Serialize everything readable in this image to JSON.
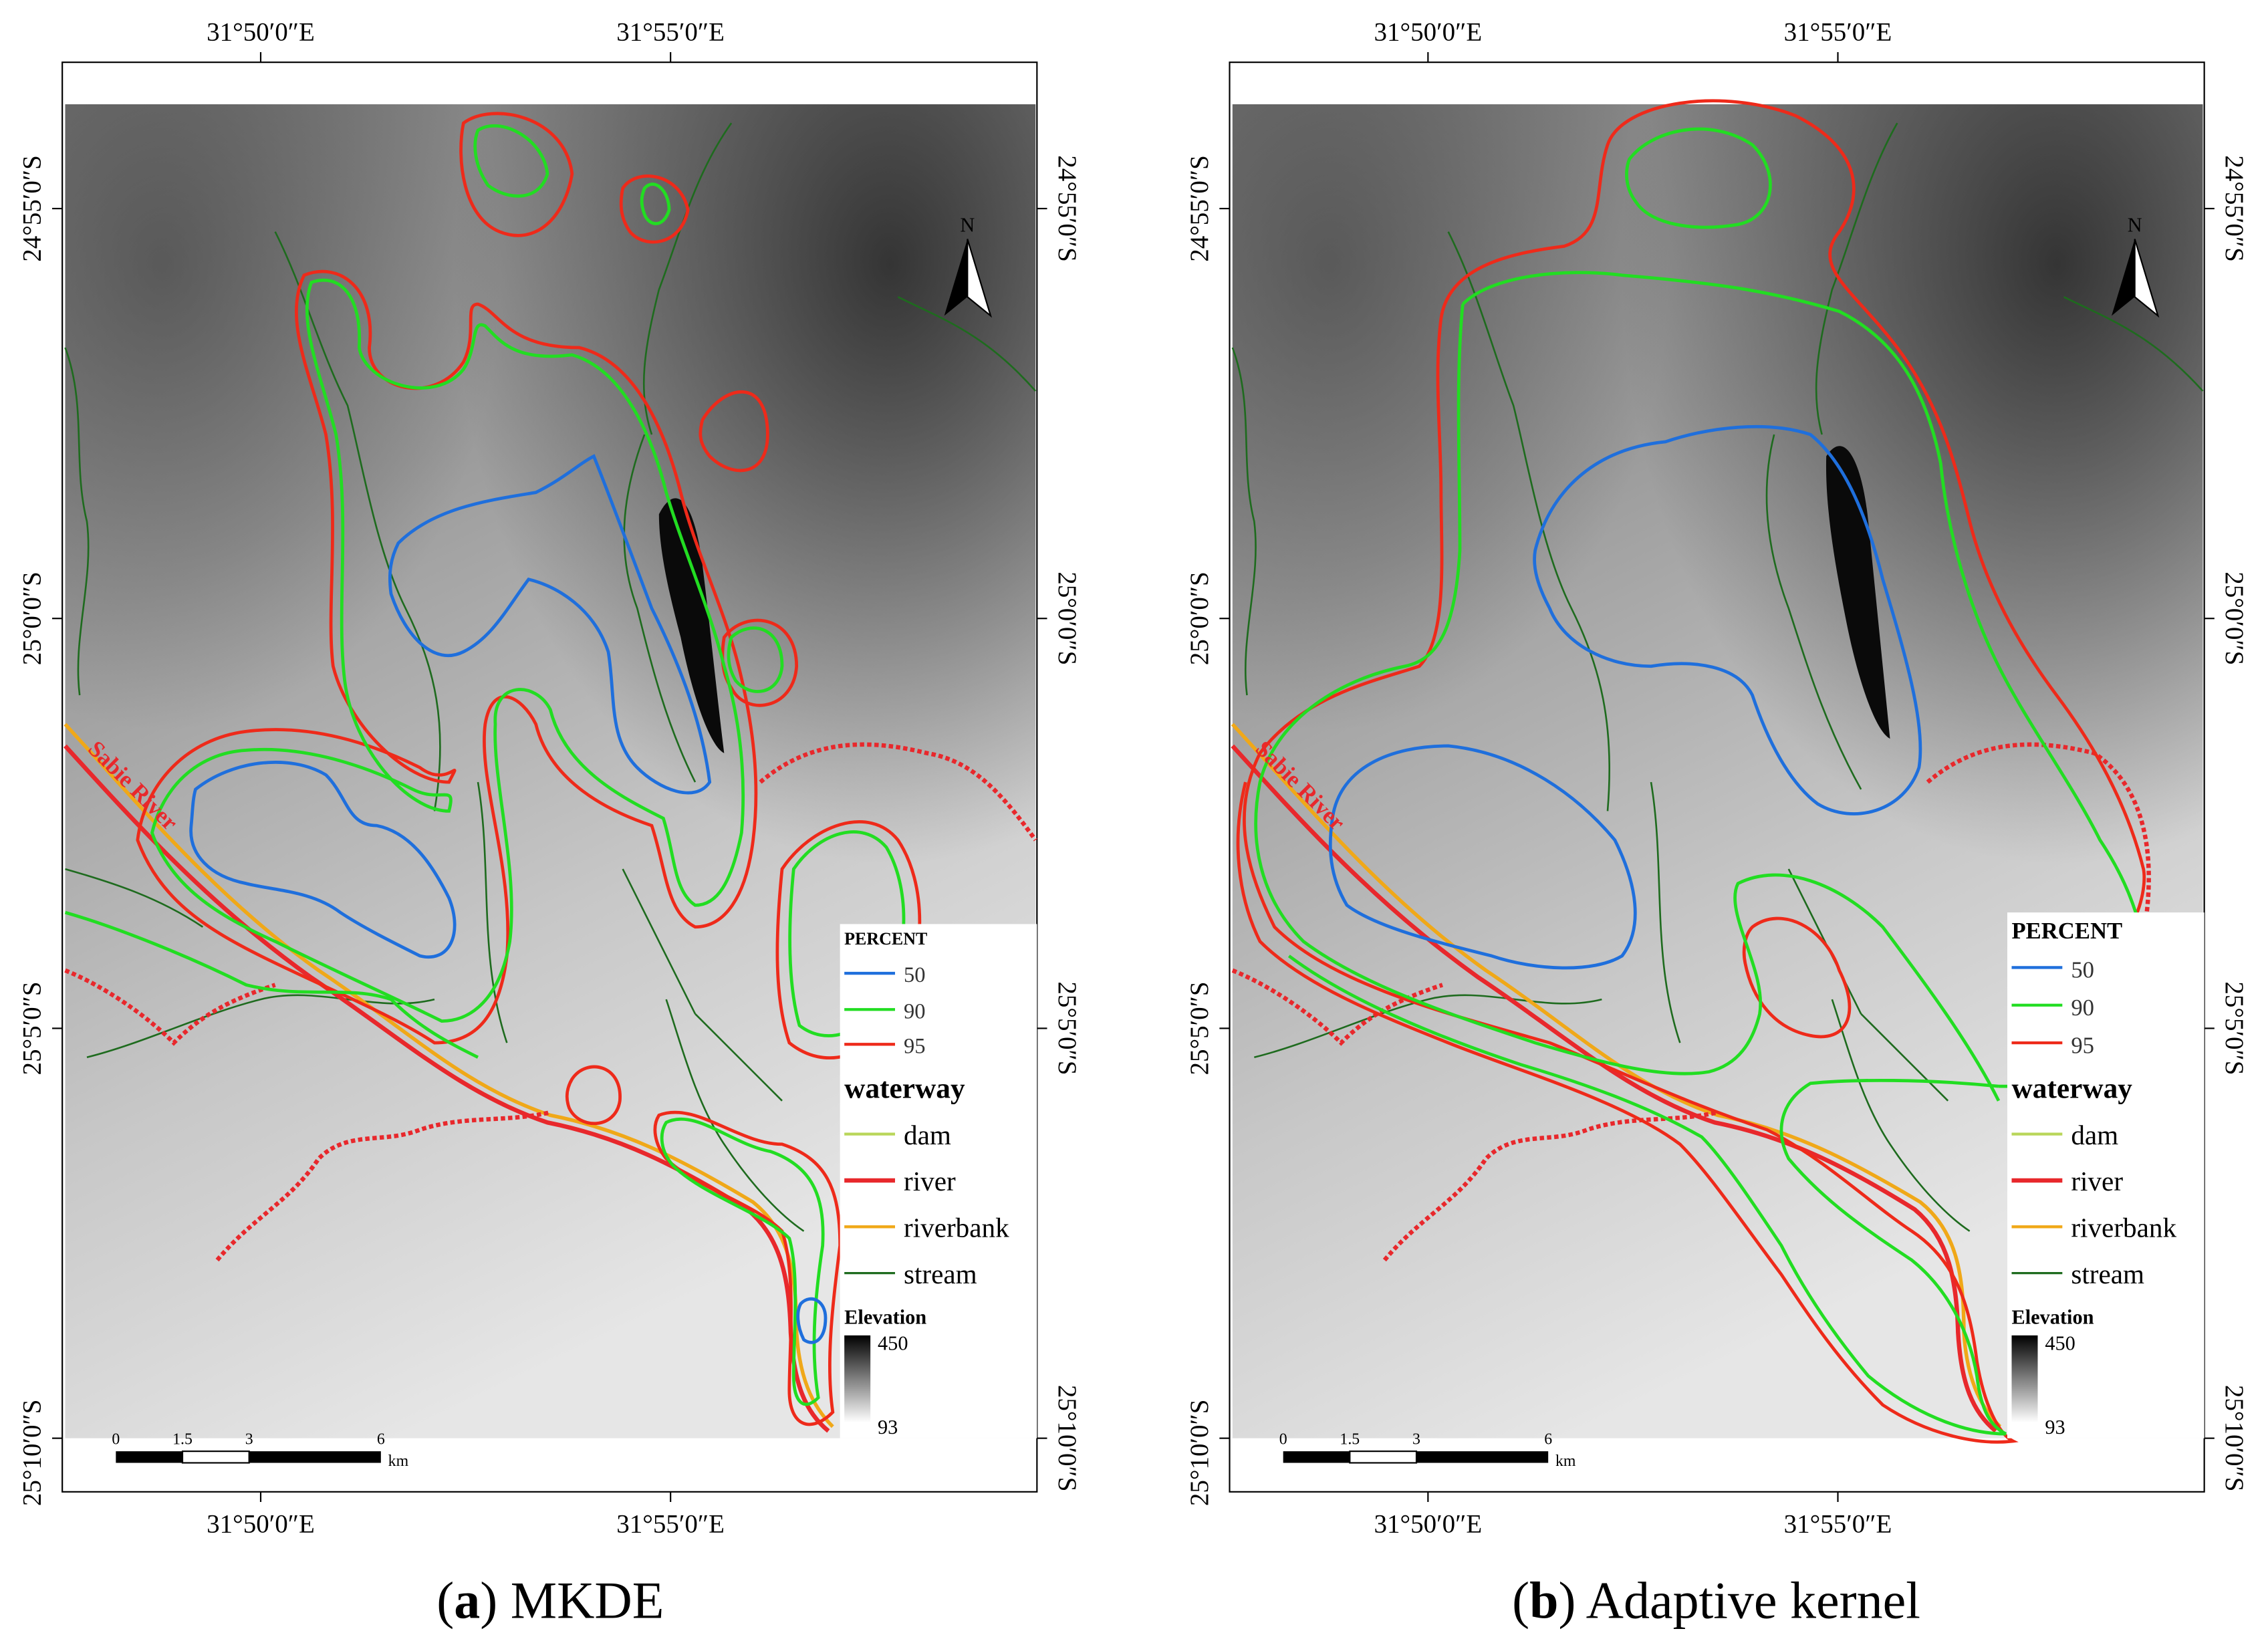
{
  "colors": {
    "percent_50": "#1f6fdc",
    "percent_90": "#22dd22",
    "percent_95": "#ee2a1a",
    "dam": "#b9d65a",
    "river": "#e8282c",
    "riverbank": "#f0a818",
    "stream": "#1e6b1e"
  },
  "panels": [
    {
      "caption_letter": "a",
      "caption_text": " MKDE",
      "top_ticks": [
        "31°50′0″E",
        "31°55′0″E"
      ],
      "bottom_ticks": [
        "31°50′0″E",
        "31°55′0″E"
      ],
      "left_ticks": [
        "24°55′0″S",
        "25°0′0″S",
        "25°5′0″S",
        "25°10′0″S"
      ],
      "right_ticks": [
        "24°55′0″S",
        "25°0′0″S",
        "25°5′0″S",
        "25°10′0″S"
      ],
      "river_label": "Sabie River",
      "north_label": "N",
      "legend": {
        "percent_title": "PERCENT",
        "percent_items": [
          "50",
          "90",
          "95"
        ],
        "waterway_title": "waterway",
        "waterway_items": [
          "dam",
          "river",
          "riverbank",
          "stream"
        ],
        "elevation_title": "Elevation",
        "elevation_max": "450",
        "elevation_min": "93"
      },
      "scalebar": {
        "ticks": [
          "0",
          "1.5",
          "3",
          "6"
        ],
        "unit": "km"
      }
    },
    {
      "caption_letter": "b",
      "caption_text": " Adaptive kernel",
      "top_ticks": [
        "31°50′0″E",
        "31°55′0″E"
      ],
      "bottom_ticks": [
        "31°50′0″E",
        "31°55′0″E"
      ],
      "left_ticks": [
        "24°55′0″S",
        "25°0′0″S",
        "25°5′0″S",
        "25°10′0″S"
      ],
      "right_ticks": [
        "24°55′0″S",
        "25°0′0″S",
        "25°5′0″S",
        "25°10′0″S"
      ],
      "river_label": "Sabie River",
      "north_label": "N",
      "legend": {
        "percent_title": "PERCENT",
        "percent_items": [
          "50",
          "90",
          "95"
        ],
        "waterway_title": "waterway",
        "waterway_items": [
          "dam",
          "river",
          "riverbank",
          "stream"
        ],
        "elevation_title": "Elevation",
        "elevation_max": "450",
        "elevation_min": "93"
      },
      "scalebar": {
        "ticks": [
          "0",
          "1.5",
          "3",
          "6"
        ],
        "unit": "km"
      }
    }
  ]
}
